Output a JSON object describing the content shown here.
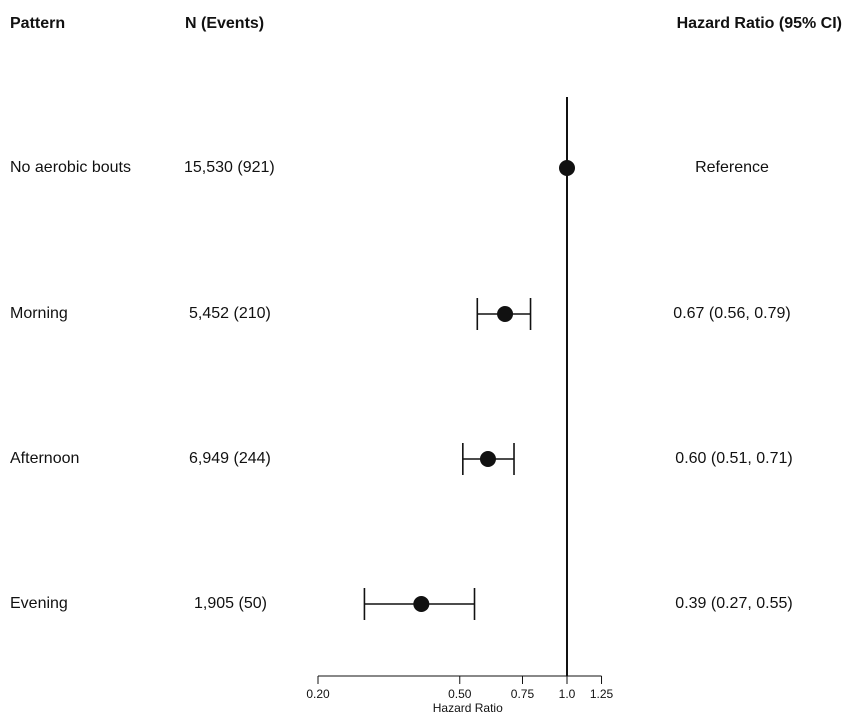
{
  "headers": {
    "pattern": "Pattern",
    "n_events": "N (Events)",
    "hazard_ci": "Hazard Ratio (95% CI)"
  },
  "rows": [
    {
      "pattern": "No aerobic bouts",
      "n_events": "15,530 (921)",
      "hr_text": "Reference"
    },
    {
      "pattern": "Morning",
      "n_events": "5,452 (210)",
      "hr_text": "0.67 (0.56, 0.79)"
    },
    {
      "pattern": "Afternoon",
      "n_events": "6,949 (244)",
      "hr_text": "0.60 (0.51, 0.71)"
    },
    {
      "pattern": "Evening",
      "n_events": "1,905 (50)",
      "hr_text": "0.39 (0.27, 0.55)"
    }
  ],
  "chart_data": {
    "type": "forest",
    "xlabel": "Hazard Ratio",
    "x_scale": "log",
    "xticks": [
      0.2,
      0.5,
      0.75,
      1.0,
      1.25
    ],
    "xtick_labels": [
      "0.20",
      "0.50",
      "0.75",
      "1.0",
      "1.25"
    ],
    "xlim": [
      0.2,
      1.25
    ],
    "reference_line": 1.0,
    "points": [
      {
        "category": "No aerobic bouts",
        "hr": 1.0,
        "lower": null,
        "upper": null
      },
      {
        "category": "Morning",
        "hr": 0.67,
        "lower": 0.56,
        "upper": 0.79
      },
      {
        "category": "Afternoon",
        "hr": 0.6,
        "lower": 0.51,
        "upper": 0.71
      },
      {
        "category": "Evening",
        "hr": 0.39,
        "lower": 0.27,
        "upper": 0.55
      }
    ]
  },
  "colors": {
    "ink": "#111111",
    "background": "#ffffff"
  }
}
